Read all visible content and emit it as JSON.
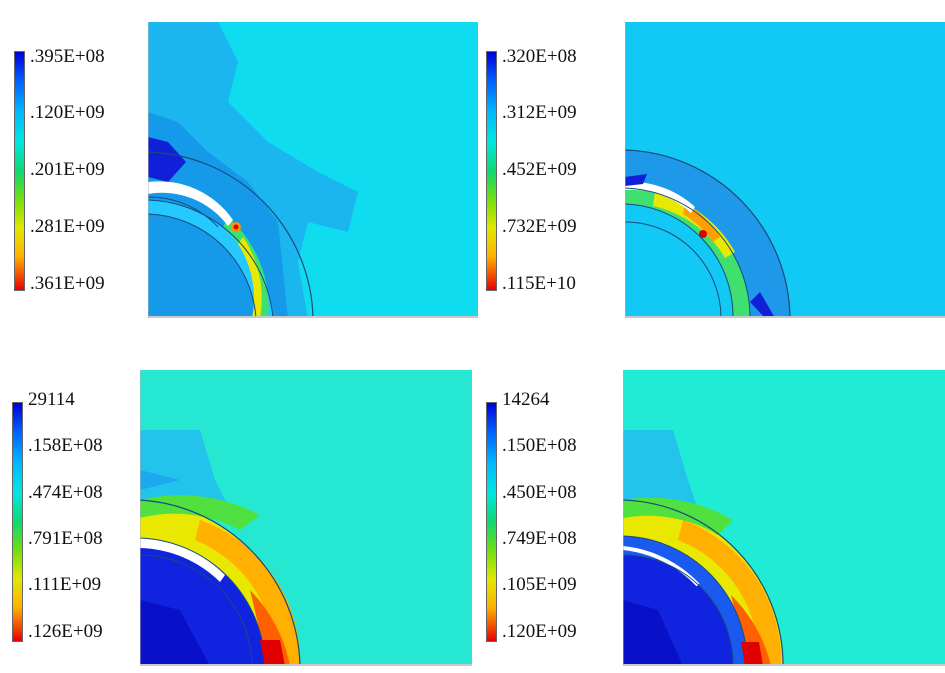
{
  "panels": [
    {
      "id": "top-left",
      "legend_ticks": [
        ".395E+08",
        ".120E+09",
        ".201E+09",
        ".281E+09",
        ".361E+09"
      ],
      "background_color": "#10dcf0"
    },
    {
      "id": "top-right",
      "legend_ticks": [
        ".320E+08",
        ".312E+09",
        ".452E+09",
        ".732E+09",
        ".115E+10"
      ],
      "background_color": "#12c8f4"
    },
    {
      "id": "bottom-left",
      "legend_ticks": [
        "29114",
        ".158E+08",
        ".474E+08",
        ".791E+08",
        ".111E+09",
        ".126E+09"
      ],
      "background_color": "#26e8d2"
    },
    {
      "id": "bottom-right",
      "legend_ticks": [
        "14264",
        ".150E+08",
        ".450E+08",
        ".749E+08",
        ".105E+09",
        ".120E+09"
      ],
      "background_color": "#20ecd6"
    }
  ],
  "colorbar_colors": [
    "#0000e0",
    "#0060ff",
    "#00b0ff",
    "#00e8e8",
    "#00e0a0",
    "#20d040",
    "#90e000",
    "#e8e800",
    "#ffb000",
    "#ff5000",
    "#e00000"
  ]
}
